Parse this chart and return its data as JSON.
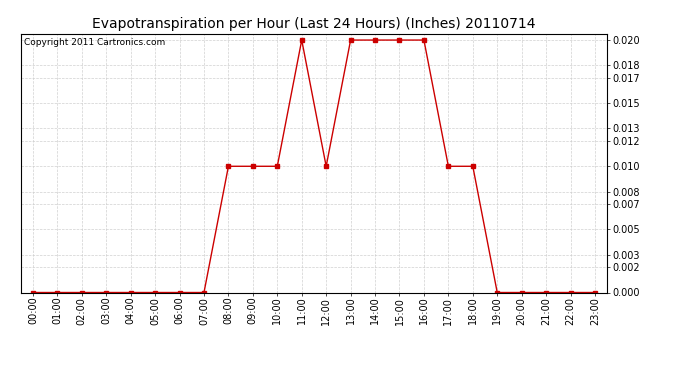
{
  "title": "Evapotranspiration per Hour (Last 24 Hours) (Inches) 20110714",
  "copyright": "Copyright 2011 Cartronics.com",
  "hours": [
    "00:00",
    "01:00",
    "02:00",
    "03:00",
    "04:00",
    "05:00",
    "06:00",
    "07:00",
    "08:00",
    "09:00",
    "10:00",
    "11:00",
    "12:00",
    "13:00",
    "14:00",
    "15:00",
    "16:00",
    "17:00",
    "18:00",
    "19:00",
    "20:00",
    "21:00",
    "22:00",
    "23:00"
  ],
  "values": [
    0.0,
    0.0,
    0.0,
    0.0,
    0.0,
    0.0,
    0.0,
    0.0,
    0.01,
    0.01,
    0.01,
    0.02,
    0.01,
    0.02,
    0.02,
    0.02,
    0.02,
    0.01,
    0.01,
    0.0,
    0.0,
    0.0,
    0.0,
    0.0
  ],
  "line_color": "#cc0000",
  "marker": "s",
  "marker_size": 2.5,
  "bg_color": "#ffffff",
  "grid_color": "#cccccc",
  "ylim": [
    0.0,
    0.0205
  ],
  "yticks": [
    0.0,
    0.002,
    0.003,
    0.005,
    0.007,
    0.008,
    0.01,
    0.012,
    0.013,
    0.015,
    0.017,
    0.018,
    0.02
  ],
  "title_fontsize": 10,
  "copyright_fontsize": 6.5,
  "tick_fontsize": 7
}
